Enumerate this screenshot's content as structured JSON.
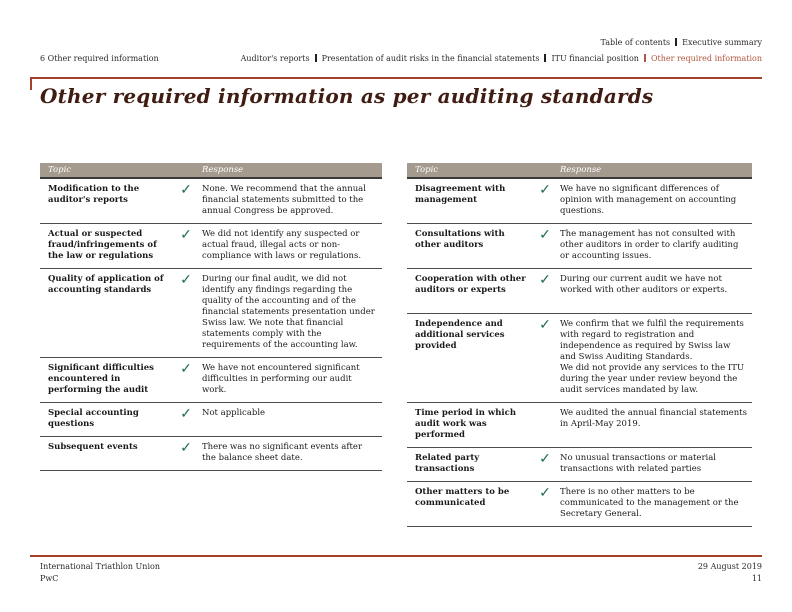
{
  "page": {
    "section_label": "6 Other required information",
    "title": "Other required information as per auditing standards"
  },
  "nav": {
    "row1": [
      "Table of contents",
      "Executive summary"
    ],
    "row2": [
      "Auditor's reports",
      "Presentation of audit risks in the financial statements",
      "ITU financial position",
      "Other required information"
    ],
    "active_item": "Other required information"
  },
  "tables": {
    "headers": {
      "topic": "Topic",
      "response": "Response"
    },
    "left_rows": [
      {
        "topic": "Modification to the auditor's reports",
        "check": "✓",
        "response": "None. We recommend that the annual financial statements submitted to the annual Congress be approved."
      },
      {
        "topic": "Actual or suspected fraud/infringements of the law or regulations",
        "check": "✓",
        "response": "We did not identify any suspected or actual fraud, illegal acts or non-compliance with laws or regulations."
      },
      {
        "topic": "Quality of application of accounting standards",
        "check": "✓",
        "response": "During our final audit, we did not identify any findings regarding the quality of the accounting and of the financial statements presentation under Swiss law. We note that financial statements comply with the requirements of the accounting law."
      },
      {
        "topic": "Significant difficulties encountered in performing the audit",
        "check": "✓",
        "response": "We have not encountered significant difficulties in performing our audit work."
      },
      {
        "topic": "Special accounting questions",
        "check": "✓",
        "response": "Not applicable"
      },
      {
        "topic": "Subsequent events",
        "check": "✓",
        "response": "There was no significant events after the balance sheet date."
      }
    ],
    "right_rows": [
      {
        "topic": "Disagreement with management",
        "check": "✓",
        "response": "We have no significant differences of opinion with management on accounting questions."
      },
      {
        "topic": "Consultations with other auditors",
        "check": "✓",
        "response": "The management has not consulted with other auditors in order to clarify auditing or accounting issues."
      },
      {
        "topic": "Cooperation with other auditors or experts",
        "check": "✓",
        "response": "During our current audit we have not worked with other auditors or experts."
      },
      {
        "topic": "Independence and additional services provided",
        "check": "✓",
        "response": "We confirm that we fulfil the requirements with regard to registration and independence as required by Swiss law and Swiss Auditing Standards.\nWe did not provide any services to the ITU during the year under review beyond the audit services mandated by law."
      },
      {
        "topic": "Time period in which audit work was performed",
        "check": "",
        "response": "We audited the annual financial statements in April-May 2019."
      },
      {
        "topic": "Related party transactions",
        "check": "✓",
        "response": "No unusual transactions or material transactions with related parties"
      },
      {
        "topic": "Other matters to be communicated",
        "check": "✓",
        "response": "There is no other matters to be communicated to the management or the Secretary General."
      }
    ]
  },
  "footer": {
    "client": "International Triathlon Union",
    "firm": "PwC",
    "date": "29 August 2019",
    "page_number": "11"
  },
  "colors": {
    "accent": "#A5402B",
    "nav_active": "#B2573F",
    "table_header_bg": "#A49A8E",
    "check": "#1E6C56",
    "title": "#3F1D12"
  }
}
